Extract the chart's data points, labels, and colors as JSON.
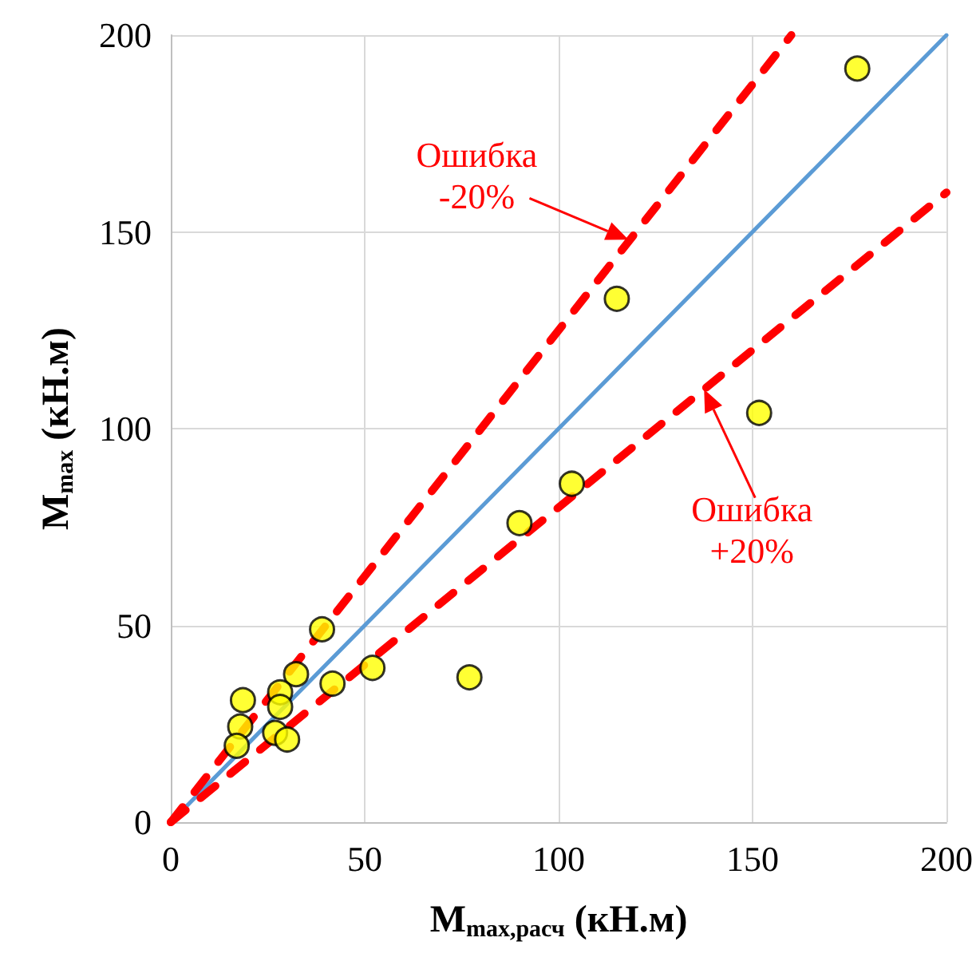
{
  "chart_data": {
    "type": "scatter",
    "xlabel": "M$_{max,расч}$ (кН.м)",
    "ylabel": "M$_{max}$ (кН.м)",
    "xlim": [
      0,
      200
    ],
    "ylim": [
      0,
      200
    ],
    "xticks": [
      0,
      50,
      100,
      150,
      200
    ],
    "yticks": [
      0,
      50,
      100,
      150,
      200
    ],
    "grid": true,
    "series": [
      {
        "type": "line",
        "x": [
          0,
          200
        ],
        "values": [
          0,
          200
        ],
        "color": "#5b9bd5",
        "marker": "none",
        "line_style": "solid"
      },
      {
        "type": "line",
        "x": [
          0,
          160
        ],
        "values": [
          0,
          200
        ],
        "color": "#ff0000",
        "marker": "none",
        "line_style": "dashed"
      },
      {
        "type": "line",
        "x": [
          0,
          200
        ],
        "values": [
          0,
          160
        ],
        "color": "#ff0000",
        "marker": "none",
        "line_style": "dashed"
      },
      {
        "color": "#ffff00",
        "marker": "circle",
        "x": [
          39,
          32.3,
          18.6,
          28.2,
          28.2,
          17.9,
          17,
          26.9,
          30,
          41.7,
          52,
          77,
          115,
          151.7,
          103.4,
          89.9,
          177
        ],
        "values": [
          49,
          37.6,
          31,
          33,
          29.3,
          24.3,
          19.4,
          22.7,
          21,
          35.2,
          39.2,
          36.8,
          133,
          104,
          86,
          76,
          191.5
        ]
      }
    ],
    "annotations": [
      {
        "text": "Ошибка\n-20%",
        "x": 118,
        "y": 148
      },
      {
        "text": "Ошибка\n+20%",
        "x": 137.5,
        "y": 110
      }
    ]
  }
}
